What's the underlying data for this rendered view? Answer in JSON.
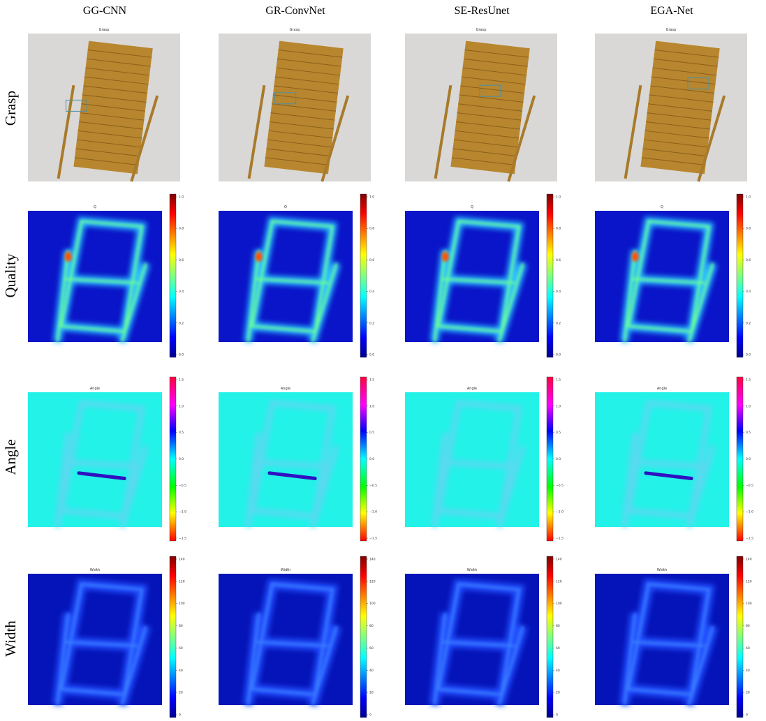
{
  "columns": [
    "GG-CNN",
    "GR-ConvNet",
    "SE-ResUnet",
    "EGA-Net"
  ],
  "rows": [
    {
      "label": "Grasp",
      "panel_title": "Grasp"
    },
    {
      "label": "Quality",
      "panel_title": "Q",
      "colorbar_ticks": [
        "1.0",
        "0.8",
        "0.6",
        "0.4",
        "0.2",
        "0.0"
      ]
    },
    {
      "label": "Angle",
      "panel_title": "Angle",
      "colorbar_ticks": [
        "1.5",
        "1.0",
        "0.5",
        "0.0",
        "−0.5",
        "−1.0",
        "−1.5"
      ]
    },
    {
      "label": "Width",
      "panel_title": "Width",
      "colorbar_ticks": [
        "140",
        "120",
        "100",
        "80",
        "60",
        "40",
        "20",
        "0"
      ]
    }
  ]
}
